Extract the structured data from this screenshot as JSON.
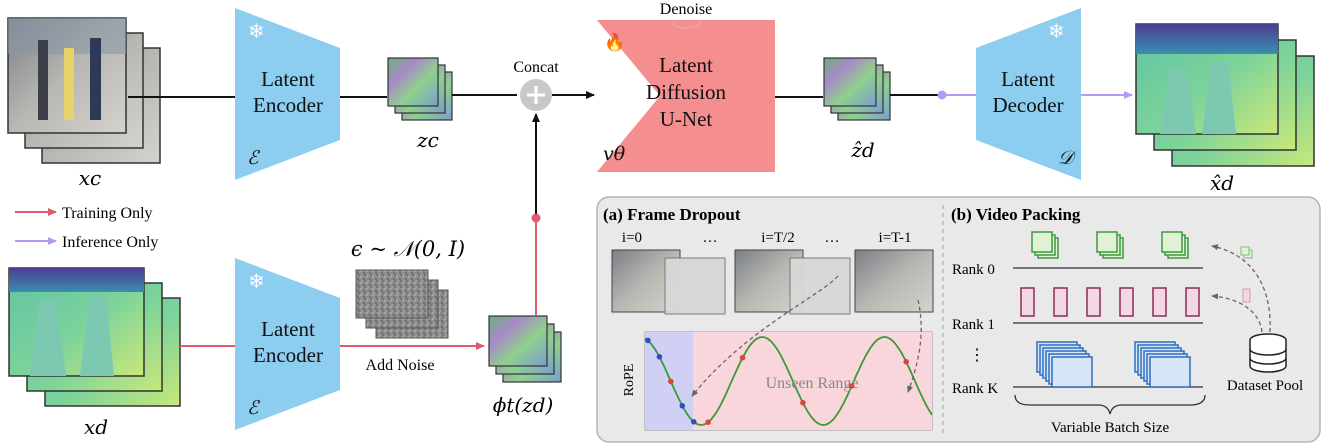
{
  "encoder_top": {
    "line1": "Latent",
    "line2": "Encoder",
    "symbol": "ℰ"
  },
  "encoder_bottom": {
    "line1": "Latent",
    "line2": "Encoder",
    "symbol": "ℰ"
  },
  "unet": {
    "line1": "Latent",
    "line2": "Diffusion",
    "line3": "U-Net",
    "symbol": "vθ",
    "top_label": "Denoise"
  },
  "decoder": {
    "line1": "Latent",
    "line2": "Decoder",
    "symbol": "𝒟"
  },
  "concat_label": "Concat",
  "add_noise_label": "Add Noise",
  "noise_formula": "ϵ ~ 𝒩(0, I)",
  "vars": {
    "xc": "xc",
    "zc": "zc",
    "xd": "xd",
    "zd_hat": "ẑd",
    "xd_hat": "x̂d",
    "phi": "ϕt(zd)"
  },
  "legend": {
    "training": "Training Only",
    "inference": "Inference Only"
  },
  "panel_a": {
    "title": "(a) Frame Dropout",
    "frames": [
      "i=0",
      "…",
      "i=T/2",
      "…",
      "i=T-1"
    ],
    "rope_label": "RoPE",
    "unseen_label": "Unseen Range"
  },
  "panel_b": {
    "title": "(b) Video Packing",
    "ranks": [
      "Rank 0",
      "Rank 1",
      "⋮",
      "Rank K"
    ],
    "batch_label": "Variable Batch Size",
    "pool_label": "Dataset Pool"
  },
  "colors": {
    "block_blue": "#8dcdf0",
    "unet_red": "#f58f8f",
    "training": "#e05a6f",
    "inference": "#b79af0",
    "panel_bg": "#e9e9e9",
    "green": "#3e9a3e",
    "purple": "#8a2c58",
    "blue": "#2e6fbf"
  }
}
